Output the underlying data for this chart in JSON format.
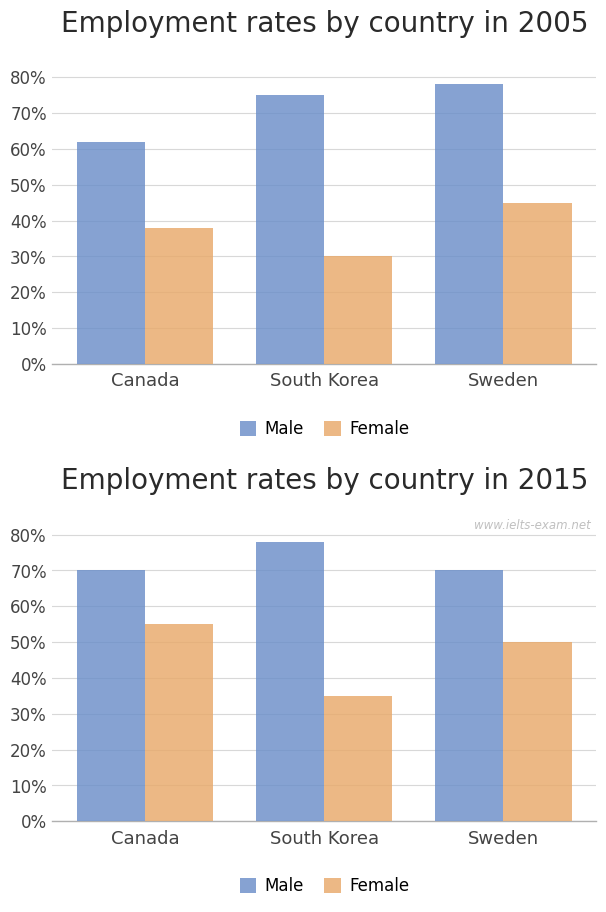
{
  "chart1": {
    "title": "Employment rates by country in 2005",
    "categories": [
      "Canada",
      "South Korea",
      "Sweden"
    ],
    "male_values": [
      0.62,
      0.75,
      0.78
    ],
    "female_values": [
      0.38,
      0.3,
      0.45
    ]
  },
  "chart2": {
    "title": "Employment rates by country in 2015",
    "categories": [
      "Canada",
      "South Korea",
      "Sweden"
    ],
    "male_values": [
      0.7,
      0.78,
      0.7
    ],
    "female_values": [
      0.55,
      0.35,
      0.5
    ],
    "watermark": "www.ielts-exam.net"
  },
  "male_color": "#6B8EC9",
  "female_color": "#E8A96A",
  "bar_width": 0.38,
  "legend_labels": [
    "Male",
    "Female"
  ],
  "ylim": [
    0,
    0.88
  ],
  "yticks": [
    0.0,
    0.1,
    0.2,
    0.3,
    0.4,
    0.5,
    0.6,
    0.7,
    0.8
  ],
  "background_color": "#ffffff",
  "title_fontsize": 20,
  "tick_fontsize": 12,
  "legend_fontsize": 12,
  "category_fontsize": 13,
  "grid_color": "#d8d8d8",
  "bottom_spine_color": "#b0b0b0"
}
